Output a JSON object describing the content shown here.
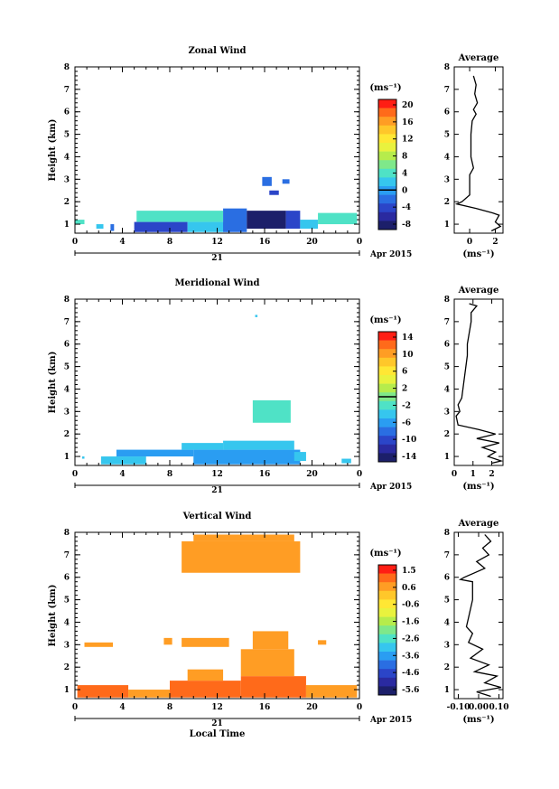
{
  "chart_data": [
    {
      "type": "heatmap",
      "title": "Zonal Wind",
      "ylabel": "Height (km)",
      "xlabel": "",
      "date_label": "21",
      "month_label": "Apr 2015",
      "x_ticks": [
        "0",
        "4",
        "8",
        "12",
        "16",
        "20",
        "0"
      ],
      "y_ticks": [
        "1",
        "2",
        "3",
        "4",
        "5",
        "6",
        "7",
        "8"
      ],
      "xlim": [
        0,
        24
      ],
      "ylim": [
        0.6,
        8
      ],
      "colorbar": {
        "unit": "(ms⁻¹)",
        "ticks": [
          "20",
          "16",
          "12",
          "8",
          "4",
          "0",
          "-4",
          "-8"
        ],
        "zero_level": "0"
      },
      "profile": {
        "title": "Average",
        "xlabel": "(ms⁻¹)",
        "x_ticks": [
          "0",
          "2"
        ],
        "xlim": [
          -1.2,
          2.6
        ],
        "points": [
          [
            0.3,
            7.6
          ],
          [
            0.5,
            7.2
          ],
          [
            0.4,
            6.8
          ],
          [
            0.6,
            6.4
          ],
          [
            0.3,
            6.1
          ],
          [
            0.5,
            5.9
          ],
          [
            0.2,
            5.6
          ],
          [
            0.1,
            5.0
          ],
          [
            0.1,
            4.0
          ],
          [
            0.3,
            3.5
          ],
          [
            0.0,
            3.2
          ],
          [
            0.0,
            2.3
          ],
          [
            -0.6,
            2.0
          ],
          [
            -1.0,
            1.9
          ],
          [
            0.5,
            1.7
          ],
          [
            1.8,
            1.5
          ],
          [
            2.3,
            1.4
          ],
          [
            2.0,
            1.1
          ],
          [
            2.4,
            0.9
          ],
          [
            1.7,
            0.7
          ]
        ]
      },
      "cells": [
        {
          "x0": 0,
          "x1": 0.8,
          "y0": 1.0,
          "y1": 1.2,
          "v": 4
        },
        {
          "x0": 1.8,
          "x1": 2.4,
          "y0": 0.8,
          "y1": 1.0,
          "v": 2
        },
        {
          "x0": 3.0,
          "x1": 3.3,
          "y0": 0.7,
          "y1": 1.0,
          "v": -2
        },
        {
          "x0": 5.0,
          "x1": 9.5,
          "y0": 0.65,
          "y1": 1.1,
          "v": -3
        },
        {
          "x0": 5.2,
          "x1": 12.5,
          "y0": 1.1,
          "y1": 1.6,
          "v": 4
        },
        {
          "x0": 9.5,
          "x1": 13.0,
          "y0": 0.65,
          "y1": 1.1,
          "v": 2
        },
        {
          "x0": 12.5,
          "x1": 14.5,
          "y0": 0.65,
          "y1": 1.7,
          "v": -2
        },
        {
          "x0": 14.5,
          "x1": 17.8,
          "y0": 0.8,
          "y1": 1.6,
          "v": -8
        },
        {
          "x0": 17.8,
          "x1": 19.0,
          "y0": 0.8,
          "y1": 1.6,
          "v": -4
        },
        {
          "x0": 19.0,
          "x1": 20.5,
          "y0": 0.8,
          "y1": 1.2,
          "v": 2
        },
        {
          "x0": 20.5,
          "x1": 23.8,
          "y0": 1.0,
          "y1": 1.5,
          "v": 4
        },
        {
          "x0": 15.8,
          "x1": 16.6,
          "y0": 2.7,
          "y1": 3.1,
          "v": -2
        },
        {
          "x0": 16.4,
          "x1": 17.2,
          "y0": 2.3,
          "y1": 2.5,
          "v": -4
        },
        {
          "x0": 17.5,
          "x1": 18.1,
          "y0": 2.8,
          "y1": 3.0,
          "v": -2
        }
      ]
    },
    {
      "type": "heatmap",
      "title": "Meridional Wind",
      "ylabel": "Height (km)",
      "xlabel": "",
      "date_label": "21",
      "month_label": "Apr 2015",
      "x_ticks": [
        "0",
        "4",
        "8",
        "12",
        "16",
        "20",
        "0"
      ],
      "y_ticks": [
        "1",
        "2",
        "3",
        "4",
        "5",
        "6",
        "7",
        "8"
      ],
      "xlim": [
        0,
        24
      ],
      "ylim": [
        0.6,
        8
      ],
      "colorbar": {
        "unit": "(ms⁻¹)",
        "ticks": [
          "14",
          "10",
          "6",
          "2",
          "-2",
          "-6",
          "-10",
          "-14"
        ],
        "zero_level": "0"
      },
      "profile": {
        "title": "Average",
        "xlabel": "(ms⁻¹)",
        "x_ticks": [
          "0",
          "1",
          "2"
        ],
        "xlim": [
          0,
          2.6
        ],
        "points": [
          [
            0.8,
            7.8
          ],
          [
            1.2,
            7.7
          ],
          [
            0.9,
            7.4
          ],
          [
            0.9,
            7.0
          ],
          [
            0.8,
            6.5
          ],
          [
            0.7,
            6.0
          ],
          [
            0.7,
            5.5
          ],
          [
            0.4,
            3.6
          ],
          [
            0.2,
            3.3
          ],
          [
            0.3,
            3.0
          ],
          [
            0.1,
            2.8
          ],
          [
            0.2,
            2.4
          ],
          [
            1.3,
            2.2
          ],
          [
            2.2,
            2.0
          ],
          [
            1.2,
            1.8
          ],
          [
            2.4,
            1.6
          ],
          [
            1.5,
            1.4
          ],
          [
            2.2,
            1.2
          ],
          [
            1.8,
            1.0
          ],
          [
            2.5,
            0.8
          ],
          [
            2.0,
            0.7
          ]
        ]
      },
      "cells": [
        {
          "x0": 0.6,
          "x1": 0.8,
          "y0": 0.9,
          "y1": 1.0,
          "v": -4
        },
        {
          "x0": 2.2,
          "x1": 6.0,
          "y0": 0.65,
          "y1": 1.0,
          "v": -4
        },
        {
          "x0": 3.5,
          "x1": 10.0,
          "y0": 1.0,
          "y1": 1.3,
          "v": -5
        },
        {
          "x0": 9.0,
          "x1": 12.5,
          "y0": 1.3,
          "y1": 1.6,
          "v": -3
        },
        {
          "x0": 10.0,
          "x1": 19.0,
          "y0": 0.65,
          "y1": 1.3,
          "v": -5
        },
        {
          "x0": 12.5,
          "x1": 18.5,
          "y0": 1.3,
          "y1": 1.7,
          "v": -4
        },
        {
          "x0": 18.5,
          "x1": 19.5,
          "y0": 0.8,
          "y1": 1.2,
          "v": -3
        },
        {
          "x0": 22.5,
          "x1": 23.3,
          "y0": 0.7,
          "y1": 0.9,
          "v": -4
        },
        {
          "x0": 15.0,
          "x1": 18.2,
          "y0": 2.5,
          "y1": 3.5,
          "v": -1
        },
        {
          "x0": 15.2,
          "x1": 15.4,
          "y0": 7.2,
          "y1": 7.3,
          "v": -4
        }
      ]
    },
    {
      "type": "heatmap",
      "title": "Vertical Wind",
      "ylabel": "Height (km)",
      "xlabel": "Local Time",
      "date_label": "21",
      "month_label": "Apr 2015",
      "x_ticks": [
        "0",
        "4",
        "8",
        "12",
        "16",
        "20",
        "0"
      ],
      "y_ticks": [
        "1",
        "2",
        "3",
        "4",
        "5",
        "6",
        "7",
        "8"
      ],
      "xlim": [
        0,
        24
      ],
      "ylim": [
        0.6,
        8
      ],
      "colorbar": {
        "unit": "(ms⁻¹)",
        "ticks": [
          "1.5",
          "0.6",
          "-0.6",
          "-1.6",
          "-2.6",
          "-3.6",
          "-4.6",
          "-5.6"
        ],
        "zero_level": ""
      },
      "profile": {
        "title": "Average",
        "xlabel": "(ms⁻¹)",
        "x_ticks": [
          "-0.10",
          "0.00",
          "0.10"
        ],
        "xlim": [
          -0.12,
          0.12
        ],
        "points": [
          [
            0.03,
            7.9
          ],
          [
            0.06,
            7.6
          ],
          [
            0.02,
            7.3
          ],
          [
            0.05,
            7.0
          ],
          [
            -0.01,
            6.7
          ],
          [
            0.03,
            6.4
          ],
          [
            -0.02,
            6.2
          ],
          [
            -0.07,
            6.0
          ],
          [
            -0.09,
            5.9
          ],
          [
            -0.03,
            5.8
          ],
          [
            -0.03,
            5.0
          ],
          [
            -0.05,
            4.2
          ],
          [
            -0.06,
            3.8
          ],
          [
            -0.03,
            3.5
          ],
          [
            -0.05,
            3.1
          ],
          [
            0.02,
            2.8
          ],
          [
            -0.04,
            2.4
          ],
          [
            0.05,
            2.1
          ],
          [
            -0.02,
            1.8
          ],
          [
            0.09,
            1.6
          ],
          [
            0.03,
            1.3
          ],
          [
            0.11,
            1.1
          ],
          [
            -0.01,
            0.9
          ],
          [
            0.06,
            0.7
          ]
        ]
      },
      "cells": [
        {
          "x0": 0.2,
          "x1": 4.5,
          "y0": 0.65,
          "y1": 1.2,
          "v": 0.8
        },
        {
          "x0": 4.5,
          "x1": 8.0,
          "y0": 0.65,
          "y1": 1.0,
          "v": 0.4
        },
        {
          "x0": 8.0,
          "x1": 14.0,
          "y0": 0.65,
          "y1": 1.4,
          "v": 1.0
        },
        {
          "x0": 9.5,
          "x1": 12.5,
          "y0": 1.4,
          "y1": 1.9,
          "v": 0.4
        },
        {
          "x0": 14.0,
          "x1": 19.5,
          "y0": 0.65,
          "y1": 1.6,
          "v": 0.6
        },
        {
          "x0": 19.5,
          "x1": 23.8,
          "y0": 0.65,
          "y1": 1.2,
          "v": 0.5
        },
        {
          "x0": 14.0,
          "x1": 18.5,
          "y0": 1.6,
          "y1": 2.8,
          "v": 0.4
        },
        {
          "x0": 15.0,
          "x1": 18.0,
          "y0": 2.8,
          "y1": 3.6,
          "v": 0.3
        },
        {
          "x0": 0.8,
          "x1": 3.2,
          "y0": 2.9,
          "y1": 3.1,
          "v": 0.2
        },
        {
          "x0": 7.5,
          "x1": 8.2,
          "y0": 3.0,
          "y1": 3.3,
          "v": 0.2
        },
        {
          "x0": 9.0,
          "x1": 13.0,
          "y0": 2.9,
          "y1": 3.3,
          "v": 0.2
        },
        {
          "x0": 20.5,
          "x1": 21.2,
          "y0": 3.0,
          "y1": 3.2,
          "v": 0.2
        },
        {
          "x0": 9.0,
          "x1": 19.0,
          "y0": 6.2,
          "y1": 7.6,
          "v": 0.3
        },
        {
          "x0": 10.0,
          "x1": 18.5,
          "y0": 7.6,
          "y1": 7.9,
          "v": 0.2
        }
      ]
    }
  ]
}
